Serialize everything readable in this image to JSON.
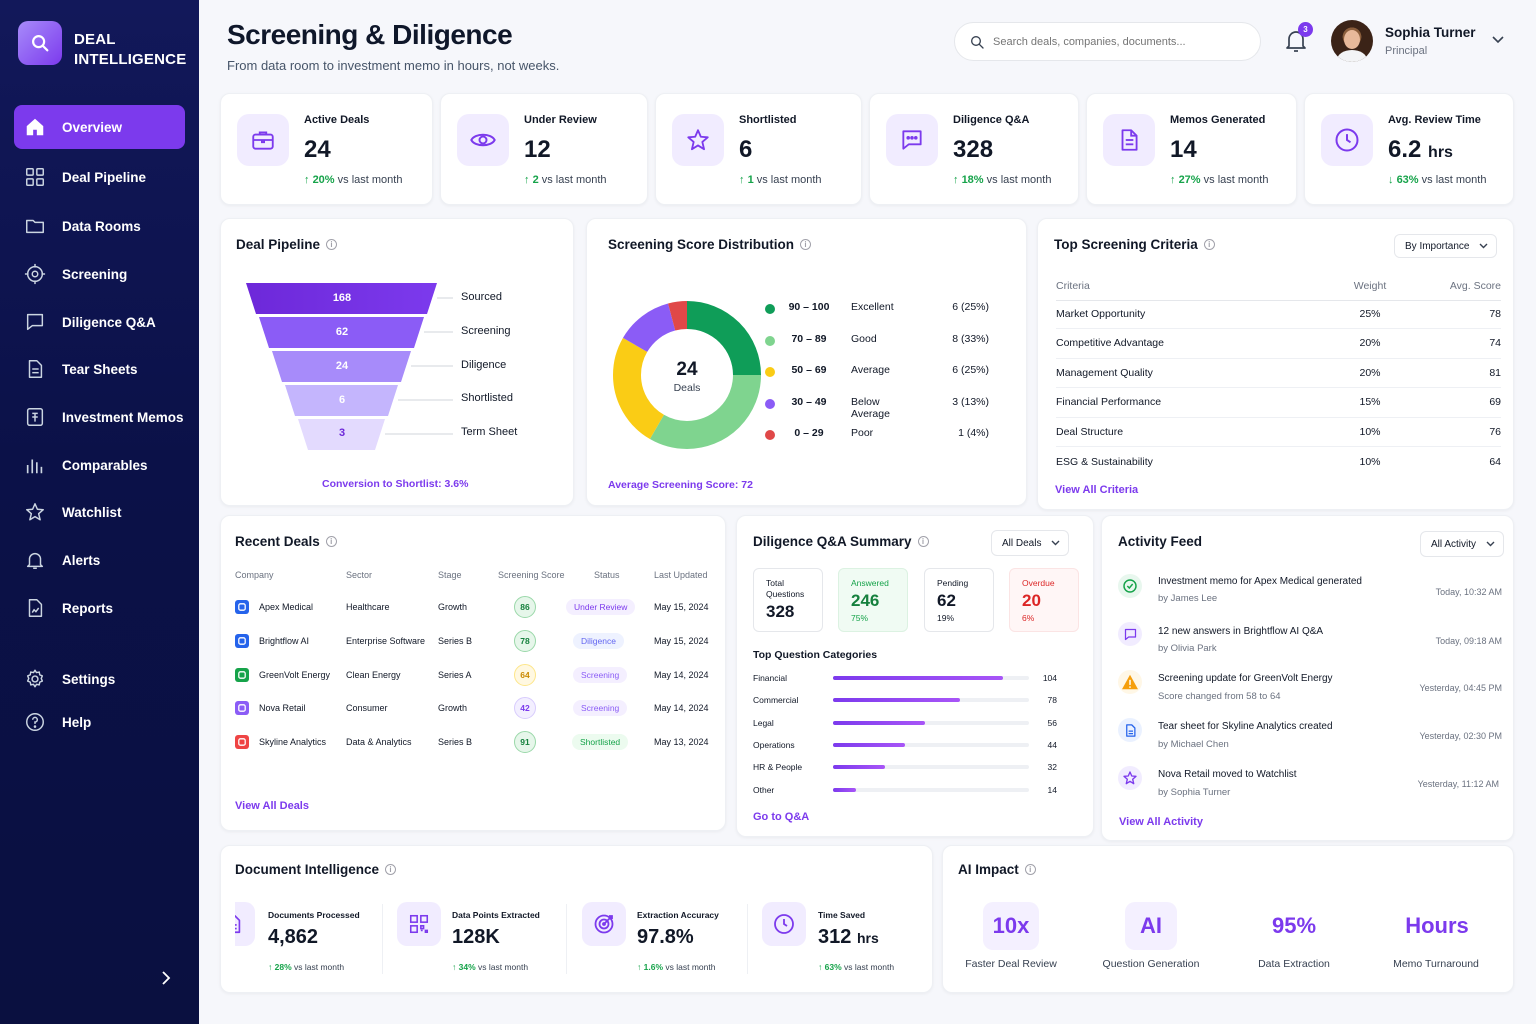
{
  "brand": {
    "line1": "DEAL",
    "line2": "INTELLIGENCE"
  },
  "nav": [
    {
      "label": "Overview",
      "icon": "home-icon",
      "active": true
    },
    {
      "label": "Deal Pipeline",
      "icon": "grid-icon"
    },
    {
      "label": "Data Rooms",
      "icon": "folder-icon"
    },
    {
      "label": "Screening",
      "icon": "target-icon"
    },
    {
      "label": "Diligence Q&A",
      "icon": "chat-icon"
    },
    {
      "label": "Tear Sheets",
      "icon": "document-icon"
    },
    {
      "label": "Investment Memos",
      "icon": "memo-icon"
    },
    {
      "label": "Comparables",
      "icon": "bar-chart-icon"
    },
    {
      "label": "Watchlist",
      "icon": "star-icon"
    },
    {
      "label": "Alerts",
      "icon": "bell-icon"
    },
    {
      "label": "Reports",
      "icon": "report-icon"
    }
  ],
  "nav_bottom": [
    {
      "label": "Settings",
      "icon": "gear-icon"
    },
    {
      "label": "Help",
      "icon": "help-icon"
    }
  ],
  "header": {
    "title": "Screening & Diligence",
    "subtitle": "From data room to investment memo in hours, not weeks.",
    "search_placeholder": "Search deals, companies, documents...",
    "notifications": "3",
    "user_name": "Sophia Turner",
    "user_role": "Principal"
  },
  "kpis": [
    {
      "label": "Active Deals",
      "value": "24",
      "unit": "",
      "delta": "20%",
      "delta_text": "vs last month",
      "direction": "up",
      "icon": "briefcase-icon"
    },
    {
      "label": "Under Review",
      "value": "12",
      "unit": "",
      "delta": "2",
      "delta_text": "vs last month",
      "direction": "up",
      "icon": "eye-icon"
    },
    {
      "label": "Shortlisted",
      "value": "6",
      "unit": "",
      "delta": "1",
      "delta_text": "vs last month",
      "direction": "up",
      "icon": "star-icon"
    },
    {
      "label": "Diligence Q&A",
      "value": "328",
      "unit": "",
      "delta": "18%",
      "delta_text": "vs last month",
      "direction": "up",
      "icon": "chat-icon"
    },
    {
      "label": "Memos Generated",
      "value": "14",
      "unit": "",
      "delta": "27%",
      "delta_text": "vs last month",
      "direction": "up",
      "icon": "document-icon"
    },
    {
      "label": "Avg. Review Time",
      "value": "6.2",
      "unit": "hrs",
      "delta": "63%",
      "delta_text": "vs last month",
      "direction": "down",
      "icon": "clock-icon"
    }
  ],
  "pipeline": {
    "title": "Deal Pipeline",
    "stages": [
      {
        "label": "Sourced",
        "value": "168"
      },
      {
        "label": "Screening",
        "value": "62"
      },
      {
        "label": "Diligence",
        "value": "24"
      },
      {
        "label": "Shortlisted",
        "value": "6"
      },
      {
        "label": "Term Sheet",
        "value": "3"
      }
    ],
    "footer": "Conversion to Shortlist: 3.6%"
  },
  "distribution": {
    "title": "Screening Score Distribution",
    "center_value": "24",
    "center_label": "Deals",
    "footer": "Average Screening Score: 72"
  },
  "criteria": {
    "title": "Top Screening Criteria",
    "filter": "By Importance",
    "headers": [
      "Criteria",
      "Weight",
      "Avg. Score"
    ],
    "rows": [
      [
        "Market Opportunity",
        "25%",
        "78"
      ],
      [
        "Competitive Advantage",
        "20%",
        "74"
      ],
      [
        "Management Quality",
        "20%",
        "81"
      ],
      [
        "Financial Performance",
        "15%",
        "69"
      ],
      [
        "Deal Structure",
        "10%",
        "76"
      ],
      [
        "ESG & Sustainability",
        "10%",
        "64"
      ]
    ],
    "link": "View All Criteria"
  },
  "recent_deals": {
    "title": "Recent Deals",
    "headers": [
      "Company",
      "Sector",
      "Stage",
      "Screening Score",
      "Status",
      "Last Updated"
    ],
    "rows": [
      {
        "company": "Apex Medical",
        "sector": "Healthcare",
        "stage": "Growth",
        "score": "86",
        "status": "Under Review",
        "updated": "May 15, 2024",
        "color": "#2563eb"
      },
      {
        "company": "Brightflow AI",
        "sector": "Enterprise Software",
        "stage": "Series B",
        "score": "78",
        "status": "Diligence",
        "updated": "May 15, 2024",
        "color": "#2563eb"
      },
      {
        "company": "GreenVolt Energy",
        "sector": "Clean Energy",
        "stage": "Series A",
        "score": "64",
        "status": "Screening",
        "updated": "May 14, 2024",
        "color": "#16a34a"
      },
      {
        "company": "Nova Retail",
        "sector": "Consumer",
        "stage": "Growth",
        "score": "42",
        "status": "Screening",
        "updated": "May 14, 2024",
        "color": "#8b5cf6"
      },
      {
        "company": "Skyline Analytics",
        "sector": "Data & Analytics",
        "stage": "Series B",
        "score": "91",
        "status": "Shortlisted",
        "updated": "May 13, 2024",
        "color": "#ef4444"
      }
    ],
    "link": "View All Deals"
  },
  "qa": {
    "title": "Diligence Q&A Summary",
    "filter": "All Deals",
    "boxes": [
      {
        "label": "Total Questions",
        "value": "328",
        "pct": ""
      },
      {
        "label": "Answered",
        "value": "246",
        "pct": "75%"
      },
      {
        "label": "Pending",
        "value": "62",
        "pct": "19%"
      },
      {
        "label": "Overdue",
        "value": "20",
        "pct": "6%"
      }
    ],
    "categories_title": "Top Question Categories",
    "link": "Go to Q&A"
  },
  "activity": {
    "title": "Activity Feed",
    "filter": "All Activity",
    "items": [
      {
        "title": "Investment memo for Apex Medical generated",
        "by": "by James Lee",
        "time": "Today, 10:32 AM",
        "icon": "check-circle-icon"
      },
      {
        "title": "12 new answers in Brightflow AI Q&A",
        "by": "by Olivia Park",
        "time": "Today, 09:18 AM",
        "icon": "chat-icon"
      },
      {
        "title": "Screening update for GreenVolt Energy",
        "by": "Score changed from 58 to 64",
        "time": "Yesterday, 04:45 PM",
        "icon": "warning-icon"
      },
      {
        "title": "Tear sheet for Skyline Analytics created",
        "by": "by Michael Chen",
        "time": "Yesterday, 02:30 PM",
        "icon": "document-icon"
      },
      {
        "title": "Nova Retail moved to Watchlist",
        "by": "by Sophia Turner",
        "time": "Yesterday, 11:12 AM",
        "icon": "star-icon"
      }
    ],
    "link": "View All Activity"
  },
  "doc_intel": {
    "title": "Document Intelligence",
    "items": [
      {
        "label": "Documents Processed",
        "value": "4,862",
        "unit": "",
        "delta": "28%",
        "delta_text": "vs last month",
        "icon": "document-icon"
      },
      {
        "label": "Data Points Extracted",
        "value": "128K",
        "unit": "",
        "delta": "34%",
        "delta_text": "vs last month",
        "icon": "qr-icon"
      },
      {
        "label": "Extraction Accuracy",
        "value": "97.8%",
        "unit": "",
        "delta": "1.6%",
        "delta_text": "vs last month",
        "icon": "target-icon"
      },
      {
        "label": "Time Saved",
        "value": "312",
        "unit": "hrs",
        "delta": "63%",
        "delta_text": "vs last month",
        "icon": "clock-icon"
      }
    ]
  },
  "ai_impact": {
    "title": "AI Impact",
    "items": [
      {
        "value": "10x",
        "label": "Faster Deal Review"
      },
      {
        "value": "AI",
        "label": "Question Generation"
      },
      {
        "value": "95%",
        "label": "Data Extraction"
      },
      {
        "value": "Hours",
        "label": "Memo Turnaround"
      }
    ]
  },
  "chart_data": [
    {
      "type": "pie",
      "title": "Screening Score Distribution",
      "categories": [
        "90 – 100",
        "70 – 89",
        "50 – 69",
        "30 – 49",
        "0 – 29"
      ],
      "labels": [
        "Excellent",
        "Good",
        "Average",
        "Below Average",
        "Poor"
      ],
      "values": [
        6,
        8,
        6,
        3,
        1
      ],
      "percent_labels": [
        "6 (25%)",
        "8 (33%)",
        "6 (25%)",
        "3 (13%)",
        "1 (4%)"
      ],
      "colors": [
        "#0f9d58",
        "#7fd48f",
        "#facc15",
        "#8b5cf6",
        "#e04848"
      ]
    },
    {
      "type": "bar",
      "title": "Top Question Categories",
      "categories": [
        "Financial",
        "Commercial",
        "Legal",
        "Operations",
        "HR & People",
        "Other"
      ],
      "values": [
        104,
        78,
        56,
        44,
        32,
        14
      ]
    }
  ]
}
